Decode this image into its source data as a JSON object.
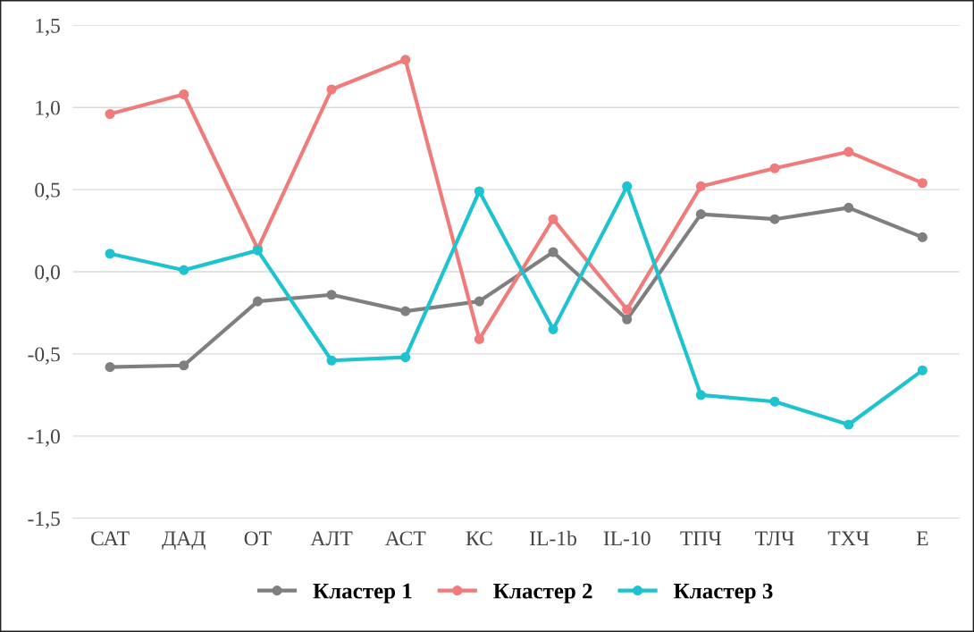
{
  "chart_data": {
    "type": "line",
    "categories": [
      "САТ",
      "ДАД",
      "ОТ",
      "АЛТ",
      "АСТ",
      "КС",
      "IL-1b",
      "IL-10",
      "ТПЧ",
      "ТЛЧ",
      "ТХЧ",
      "Е"
    ],
    "series": [
      {
        "name": "Кластер 1",
        "color": "#7f7f7f",
        "values": [
          -0.58,
          -0.57,
          -0.18,
          -0.14,
          -0.24,
          -0.18,
          0.12,
          -0.29,
          0.35,
          0.32,
          0.39,
          0.21
        ]
      },
      {
        "name": "Кластер 2",
        "color": "#f07b7b",
        "values": [
          0.96,
          1.08,
          0.14,
          1.11,
          1.29,
          -0.41,
          0.32,
          -0.23,
          0.52,
          0.63,
          0.73,
          0.54
        ]
      },
      {
        "name": "Кластер 3",
        "color": "#1ec3cf",
        "values": [
          0.11,
          0.01,
          0.13,
          -0.54,
          -0.52,
          0.49,
          -0.35,
          0.52,
          -0.75,
          -0.79,
          -0.93,
          -0.6
        ]
      }
    ],
    "ylim": [
      -1.5,
      1.5
    ],
    "yticks": [
      {
        "value": -1.5,
        "label": "-1,5"
      },
      {
        "value": -1.0,
        "label": "-1,0"
      },
      {
        "value": -0.5,
        "label": "-0,5"
      },
      {
        "value": 0.0,
        "label": "0,0"
      },
      {
        "value": 0.5,
        "label": "0,5"
      },
      {
        "value": 1.0,
        "label": "1,0"
      },
      {
        "value": 1.5,
        "label": "1,5"
      }
    ],
    "grid": "y",
    "legend": "bottom",
    "marker": "circle",
    "line_style": "solid"
  }
}
